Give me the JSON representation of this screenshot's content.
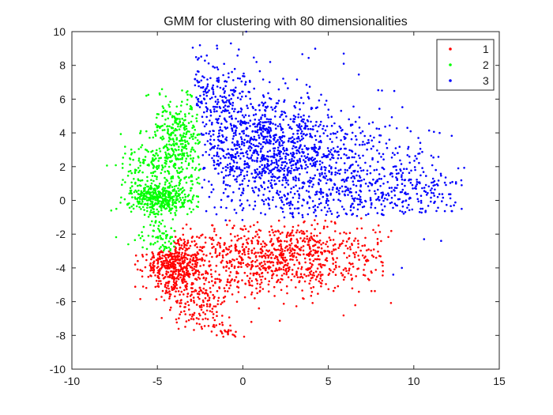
{
  "chart_data": {
    "type": "scatter",
    "title": "GMM for clustering with 80 dimensionalities",
    "xlabel": "",
    "ylabel": "",
    "xlim": [
      -10,
      15
    ],
    "ylim": [
      -10,
      10
    ],
    "xticks": [
      -10,
      -5,
      0,
      5,
      10,
      15
    ],
    "yticks": [
      -10,
      -8,
      -6,
      -4,
      -2,
      0,
      2,
      4,
      6,
      8,
      10
    ],
    "grid": false,
    "legend_position": "top-right",
    "series": [
      {
        "name": "1",
        "color": "#ff0000",
        "clusters": [
          {
            "cx": 2.0,
            "cy": -3.3,
            "sx": 3.0,
            "sy": 1.2,
            "n": 900
          },
          {
            "cx": -4.0,
            "cy": -3.8,
            "sx": 0.9,
            "sy": 0.8,
            "n": 450
          },
          {
            "cx": -2.8,
            "cy": -5.9,
            "sx": 0.9,
            "sy": 0.9,
            "n": 160
          },
          {
            "cx": -1.0,
            "cy": -7.6,
            "sx": 0.5,
            "sy": 0.4,
            "n": 25
          }
        ],
        "points": [
          [
            -0.5,
            -8.0
          ],
          [
            0.5,
            -7.2
          ],
          [
            7.8,
            -3.4
          ],
          [
            8.2,
            -4.2
          ],
          [
            6.3,
            -2.9
          ],
          [
            -6.3,
            -3.8
          ]
        ]
      },
      {
        "name": "2",
        "color": "#00ff00",
        "clusters": [
          {
            "cx": -4.8,
            "cy": 0.1,
            "sx": 0.9,
            "sy": 0.5,
            "n": 380
          },
          {
            "cx": -3.8,
            "cy": 3.4,
            "sx": 0.8,
            "sy": 1.5,
            "n": 380
          },
          {
            "cx": -5.8,
            "cy": 1.8,
            "sx": 0.8,
            "sy": 1.1,
            "n": 110
          },
          {
            "cx": -4.6,
            "cy": -2.4,
            "sx": 0.8,
            "sy": 0.5,
            "n": 70
          }
        ],
        "points": [
          [
            -7.7,
            -0.6
          ],
          [
            -7.4,
            -0.5
          ],
          [
            -6.7,
            -2.6
          ],
          [
            -3.3,
            6.4
          ]
        ]
      },
      {
        "name": "3",
        "color": "#0000ff",
        "clusters": [
          {
            "cx": 1.5,
            "cy": 3.0,
            "sx": 2.3,
            "sy": 1.8,
            "n": 1100
          },
          {
            "cx": 6.5,
            "cy": 0.8,
            "sx": 2.3,
            "sy": 1.9,
            "n": 450
          },
          {
            "cx": -1.8,
            "cy": 6.5,
            "sx": 1.1,
            "sy": 1.2,
            "n": 160
          },
          {
            "cx": 10.5,
            "cy": 0.3,
            "sx": 1.3,
            "sy": 1.5,
            "n": 110
          }
        ],
        "points": [
          [
            0.2,
            10.0
          ],
          [
            -1.5,
            9.0
          ],
          [
            -0.7,
            9.3
          ],
          [
            0.8,
            8.2
          ],
          [
            1.6,
            8.2
          ],
          [
            5.9,
            8.7
          ],
          [
            5.9,
            8.1
          ],
          [
            12.6,
            1.9
          ],
          [
            12.8,
            0.9
          ],
          [
            12.8,
            -0.5
          ],
          [
            11.6,
            -2.4
          ],
          [
            9.3,
            -4.0
          ],
          [
            8.8,
            -4.4
          ],
          [
            10.6,
            -2.3
          ]
        ]
      }
    ]
  }
}
